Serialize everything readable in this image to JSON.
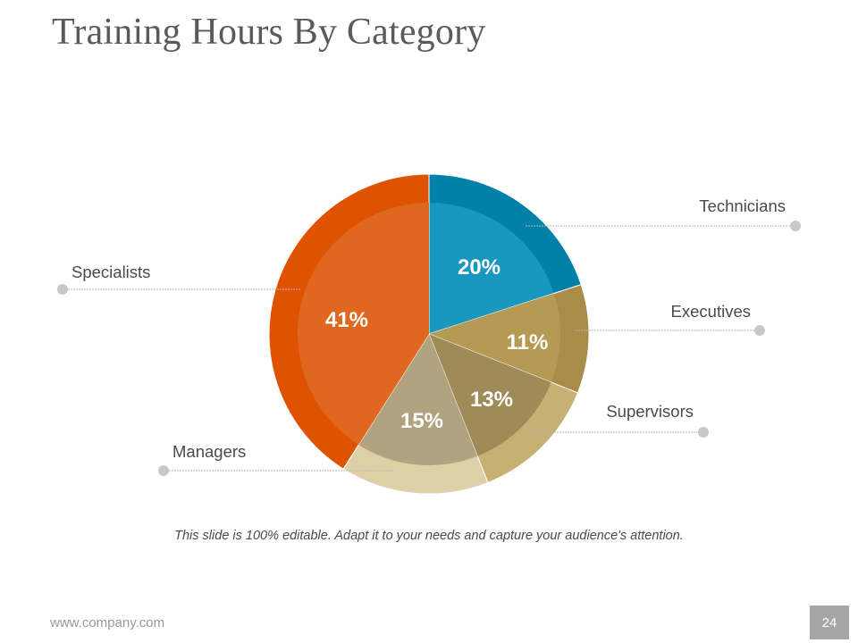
{
  "slide": {
    "title": "Training Hours By Category",
    "caption": "This slide is 100% editable. Adapt it to your needs and capture your audience's attention.",
    "footer_url": "www.company.com",
    "page_number": "24"
  },
  "chart_data": {
    "type": "pie",
    "title": "Training Hours By Category",
    "legend": "callout-labels",
    "slices": [
      {
        "label": "Technicians",
        "value": 20,
        "value_label": "20%",
        "color": "#0181a8",
        "inner_color": "#1a97bf"
      },
      {
        "label": "Executives",
        "value": 11,
        "value_label": "11%",
        "color": "#a98c47",
        "inner_color": "#b59a55"
      },
      {
        "label": "Supervisors",
        "value": 13,
        "value_label": "13%",
        "color": "#c6b073",
        "inner_color": "#9f8b58"
      },
      {
        "label": "Managers",
        "value": 15,
        "value_label": "15%",
        "color": "#ded0a6",
        "inner_color": "#b1a37f"
      },
      {
        "label": "Specialists",
        "value": 41,
        "value_label": "41%",
        "color": "#df5200",
        "inner_color": "#e0671f"
      }
    ]
  }
}
